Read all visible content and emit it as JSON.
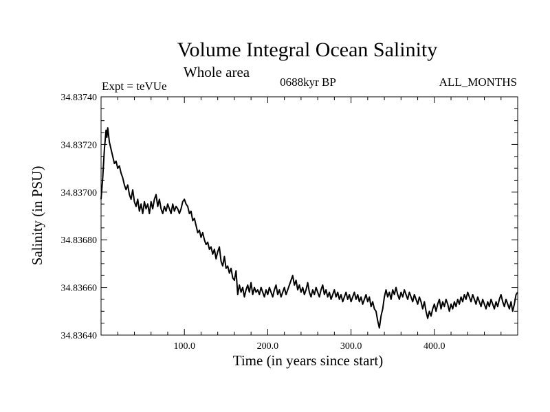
{
  "chart_data": {
    "type": "line",
    "title": "Volume Integral Ocean Salinity",
    "subtitle": "Whole area",
    "top_left_label": "Expt = teVUe",
    "top_center_label": "0688kyr BP",
    "top_right_label": "ALL_MONTHS",
    "xlabel": "Time (in years since start)",
    "ylabel": "Salinity (in PSU)",
    "xlim": [
      0,
      500
    ],
    "ylim": [
      34.8364,
      34.8374
    ],
    "x_ticks": [
      100,
      200,
      300,
      400
    ],
    "x_tick_labels": [
      "100.0",
      "200.0",
      "300.0",
      "400.0"
    ],
    "y_ticks": [
      34.8364,
      34.8366,
      34.8368,
      34.837,
      34.8372,
      34.8374
    ],
    "y_tick_labels": [
      "34.83640",
      "34.83660",
      "34.83680",
      "34.83700",
      "34.83720",
      "34.83740"
    ],
    "grid": false,
    "series": [
      {
        "color": "#000000",
        "points": [
          [
            0,
            34.83697
          ],
          [
            2,
            34.83706
          ],
          [
            3,
            34.83712
          ],
          [
            4,
            34.83718
          ],
          [
            5,
            34.83722
          ],
          [
            6,
            34.83726
          ],
          [
            7,
            34.83723
          ],
          [
            8,
            34.83727
          ],
          [
            9,
            34.83724
          ],
          [
            10,
            34.83721
          ],
          [
            12,
            34.83718
          ],
          [
            14,
            34.83715
          ],
          [
            16,
            34.83712
          ],
          [
            18,
            34.83713
          ],
          [
            20,
            34.8371
          ],
          [
            22,
            34.83711
          ],
          [
            24,
            34.83708
          ],
          [
            26,
            34.83706
          ],
          [
            28,
            34.83703
          ],
          [
            30,
            34.83701
          ],
          [
            32,
            34.83703
          ],
          [
            34,
            34.83699
          ],
          [
            36,
            34.83697
          ],
          [
            38,
            34.83701
          ],
          [
            40,
            34.83696
          ],
          [
            42,
            34.83694
          ],
          [
            44,
            34.83697
          ],
          [
            46,
            34.83692
          ],
          [
            48,
            34.83695
          ],
          [
            50,
            34.83691
          ],
          [
            52,
            34.83696
          ],
          [
            54,
            34.83693
          ],
          [
            56,
            34.83695
          ],
          [
            58,
            34.83691
          ],
          [
            60,
            34.83696
          ],
          [
            62,
            34.83693
          ],
          [
            64,
            34.83697
          ],
          [
            66,
            34.83699
          ],
          [
            68,
            34.83694
          ],
          [
            70,
            34.83697
          ],
          [
            72,
            34.83693
          ],
          [
            74,
            34.83691
          ],
          [
            76,
            34.83694
          ],
          [
            78,
            34.83692
          ],
          [
            80,
            34.83695
          ],
          [
            82,
            34.83693
          ],
          [
            84,
            34.83691
          ],
          [
            86,
            34.83695
          ],
          [
            88,
            34.83692
          ],
          [
            90,
            34.83694
          ],
          [
            92,
            34.83693
          ],
          [
            94,
            34.83691
          ],
          [
            96,
            34.83693
          ],
          [
            98,
            34.83696
          ],
          [
            100,
            34.83697
          ],
          [
            102,
            34.83695
          ],
          [
            104,
            34.83694
          ],
          [
            106,
            34.83691
          ],
          [
            108,
            34.83692
          ],
          [
            110,
            34.83688
          ],
          [
            112,
            34.83689
          ],
          [
            114,
            34.83686
          ],
          [
            116,
            34.83683
          ],
          [
            118,
            34.83684
          ],
          [
            120,
            34.83681
          ],
          [
            122,
            34.83683
          ],
          [
            124,
            34.8368
          ],
          [
            126,
            34.83678
          ],
          [
            128,
            34.83679
          ],
          [
            130,
            34.83676
          ],
          [
            132,
            34.83677
          ],
          [
            134,
            34.83674
          ],
          [
            136,
            34.83676
          ],
          [
            138,
            34.83672
          ],
          [
            140,
            34.83675
          ],
          [
            142,
            34.83677
          ],
          [
            144,
            34.83671
          ],
          [
            146,
            34.83669
          ],
          [
            148,
            34.83673
          ],
          [
            150,
            34.83668
          ],
          [
            152,
            34.83669
          ],
          [
            154,
            34.83666
          ],
          [
            156,
            34.83668
          ],
          [
            158,
            34.83664
          ],
          [
            160,
            34.83663
          ],
          [
            162,
            34.83667
          ],
          [
            164,
            34.83657
          ],
          [
            166,
            34.83661
          ],
          [
            168,
            34.83658
          ],
          [
            170,
            34.8366
          ],
          [
            172,
            34.83656
          ],
          [
            174,
            34.83659
          ],
          [
            176,
            34.83661
          ],
          [
            178,
            34.83658
          ],
          [
            180,
            34.83662
          ],
          [
            182,
            34.83657
          ],
          [
            184,
            34.8366
          ],
          [
            186,
            34.83658
          ],
          [
            188,
            34.83659
          ],
          [
            190,
            34.83657
          ],
          [
            192,
            34.8366
          ],
          [
            194,
            34.83658
          ],
          [
            196,
            34.83656
          ],
          [
            198,
            34.83659
          ],
          [
            200,
            34.83657
          ],
          [
            202,
            34.8366
          ],
          [
            204,
            34.83658
          ],
          [
            206,
            34.83656
          ],
          [
            208,
            34.83659
          ],
          [
            210,
            34.83661
          ],
          [
            212,
            34.83657
          ],
          [
            214,
            34.83659
          ],
          [
            216,
            34.83656
          ],
          [
            218,
            34.83658
          ],
          [
            220,
            34.8366
          ],
          [
            222,
            34.83657
          ],
          [
            224,
            34.83659
          ],
          [
            226,
            34.83661
          ],
          [
            228,
            34.83663
          ],
          [
            230,
            34.83665
          ],
          [
            232,
            34.83661
          ],
          [
            234,
            34.83663
          ],
          [
            236,
            34.83659
          ],
          [
            238,
            34.83661
          ],
          [
            240,
            34.83658
          ],
          [
            242,
            34.8366
          ],
          [
            244,
            34.83657
          ],
          [
            246,
            34.83659
          ],
          [
            248,
            34.83662
          ],
          [
            250,
            34.83658
          ],
          [
            252,
            34.83656
          ],
          [
            254,
            34.83659
          ],
          [
            256,
            34.83657
          ],
          [
            258,
            34.8366
          ],
          [
            260,
            34.83658
          ],
          [
            262,
            34.83656
          ],
          [
            264,
            34.83659
          ],
          [
            266,
            34.83661
          ],
          [
            268,
            34.83657
          ],
          [
            270,
            34.83659
          ],
          [
            272,
            34.83656
          ],
          [
            274,
            34.83658
          ],
          [
            276,
            34.83655
          ],
          [
            278,
            34.83657
          ],
          [
            280,
            34.83659
          ],
          [
            282,
            34.83656
          ],
          [
            284,
            34.83658
          ],
          [
            286,
            34.83655
          ],
          [
            288,
            34.83657
          ],
          [
            290,
            34.83654
          ],
          [
            292,
            34.83656
          ],
          [
            294,
            34.83658
          ],
          [
            296,
            34.83655
          ],
          [
            298,
            34.83657
          ],
          [
            300,
            34.83654
          ],
          [
            302,
            34.83656
          ],
          [
            304,
            34.83658
          ],
          [
            306,
            34.83655
          ],
          [
            308,
            34.83657
          ],
          [
            310,
            34.83654
          ],
          [
            312,
            34.83656
          ],
          [
            314,
            34.83653
          ],
          [
            316,
            34.83655
          ],
          [
            318,
            34.83657
          ],
          [
            320,
            34.83654
          ],
          [
            322,
            34.83656
          ],
          [
            324,
            34.83652
          ],
          [
            326,
            34.83654
          ],
          [
            328,
            34.83651
          ],
          [
            330,
            34.8365
          ],
          [
            332,
            34.83646
          ],
          [
            334,
            34.83643
          ],
          [
            336,
            34.83648
          ],
          [
            338,
            34.83651
          ],
          [
            340,
            34.83656
          ],
          [
            342,
            34.83659
          ],
          [
            344,
            34.83656
          ],
          [
            346,
            34.83658
          ],
          [
            348,
            34.83655
          ],
          [
            350,
            34.83659
          ],
          [
            352,
            34.83657
          ],
          [
            354,
            34.8366
          ],
          [
            356,
            34.83657
          ],
          [
            358,
            34.83655
          ],
          [
            360,
            34.83658
          ],
          [
            362,
            34.83656
          ],
          [
            364,
            34.83659
          ],
          [
            366,
            34.83657
          ],
          [
            368,
            34.83655
          ],
          [
            370,
            34.83658
          ],
          [
            372,
            34.83656
          ],
          [
            374,
            34.83654
          ],
          [
            376,
            34.83657
          ],
          [
            378,
            34.83655
          ],
          [
            380,
            34.83653
          ],
          [
            382,
            34.83656
          ],
          [
            384,
            34.83654
          ],
          [
            386,
            34.83651
          ],
          [
            388,
            34.83654
          ],
          [
            390,
            34.8365
          ],
          [
            392,
            34.83647
          ],
          [
            394,
            34.8365
          ],
          [
            396,
            34.83648
          ],
          [
            398,
            34.83651
          ],
          [
            400,
            34.83653
          ],
          [
            402,
            34.8365
          ],
          [
            404,
            34.83653
          ],
          [
            406,
            34.83655
          ],
          [
            408,
            34.83651
          ],
          [
            410,
            34.83654
          ],
          [
            412,
            34.83652
          ],
          [
            414,
            34.83655
          ],
          [
            416,
            34.83653
          ],
          [
            418,
            34.8365
          ],
          [
            420,
            34.83653
          ],
          [
            422,
            34.83651
          ],
          [
            424,
            34.83654
          ],
          [
            426,
            34.83652
          ],
          [
            428,
            34.83655
          ],
          [
            430,
            34.83653
          ],
          [
            432,
            34.83656
          ],
          [
            434,
            34.83654
          ],
          [
            436,
            34.83657
          ],
          [
            438,
            34.83655
          ],
          [
            440,
            34.83658
          ],
          [
            442,
            34.83656
          ],
          [
            444,
            34.83654
          ],
          [
            446,
            34.83657
          ],
          [
            448,
            34.83655
          ],
          [
            450,
            34.83653
          ],
          [
            452,
            34.83656
          ],
          [
            454,
            34.83654
          ],
          [
            456,
            34.83652
          ],
          [
            458,
            34.83655
          ],
          [
            460,
            34.83653
          ],
          [
            462,
            34.83651
          ],
          [
            464,
            34.83654
          ],
          [
            466,
            34.83652
          ],
          [
            468,
            34.83655
          ],
          [
            470,
            34.83653
          ],
          [
            472,
            34.83651
          ],
          [
            474,
            34.83654
          ],
          [
            476,
            34.83652
          ],
          [
            478,
            34.83655
          ],
          [
            480,
            34.83657
          ],
          [
            482,
            34.83654
          ],
          [
            484,
            34.83652
          ],
          [
            486,
            34.83655
          ],
          [
            488,
            34.83653
          ],
          [
            490,
            34.83651
          ],
          [
            492,
            34.83654
          ],
          [
            494,
            34.8365
          ],
          [
            496,
            34.83653
          ],
          [
            498,
            34.83657
          ],
          [
            500,
            34.83658
          ]
        ]
      }
    ]
  }
}
